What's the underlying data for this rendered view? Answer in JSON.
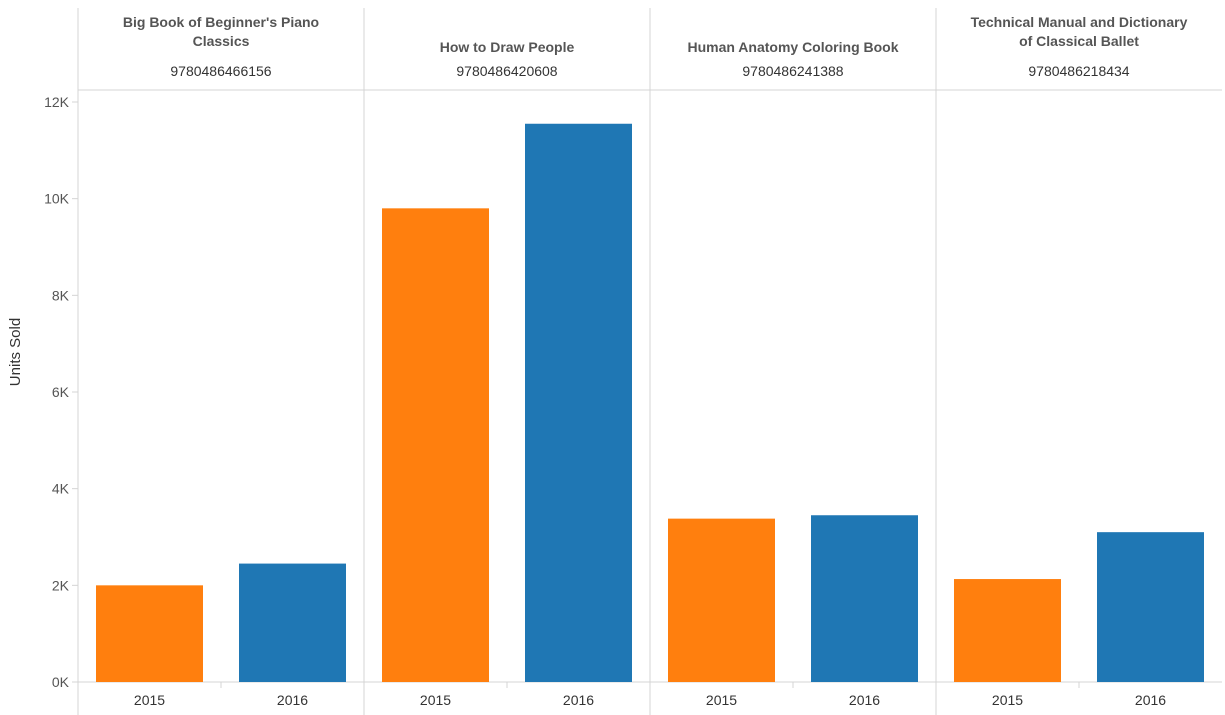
{
  "chart_data": {
    "type": "bar",
    "ylabel": "Units Sold",
    "ylim": [
      0,
      12000
    ],
    "yticks": [
      0,
      2000,
      4000,
      6000,
      8000,
      10000,
      12000
    ],
    "ytick_labels": [
      "0K",
      "2K",
      "4K",
      "6K",
      "8K",
      "10K",
      "12K"
    ],
    "grid": false,
    "legend": "none",
    "series_colors": {
      "2015": "#ff7f0e",
      "2016": "#1f77b4"
    },
    "panels": [
      {
        "title_lines": [
          "Big Book of Beginner's Piano",
          "Classics"
        ],
        "isbn": "9780486466156",
        "categories": [
          "2015",
          "2016"
        ],
        "values": [
          2000,
          2450
        ]
      },
      {
        "title_lines": [
          "How to Draw People"
        ],
        "isbn": "9780486420608",
        "categories": [
          "2015",
          "2016"
        ],
        "values": [
          9800,
          11550
        ]
      },
      {
        "title_lines": [
          "Human Anatomy Coloring Book"
        ],
        "isbn": "9780486241388",
        "categories": [
          "2015",
          "2016"
        ],
        "values": [
          3380,
          3450
        ]
      },
      {
        "title_lines": [
          "Technical Manual and Dictionary",
          "of Classical Ballet"
        ],
        "isbn": "9780486218434",
        "categories": [
          "2015",
          "2016"
        ],
        "values": [
          2130,
          3100
        ]
      }
    ]
  }
}
